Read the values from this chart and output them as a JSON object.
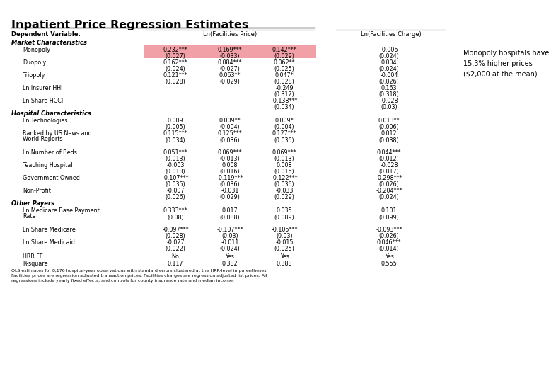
{
  "title": "Inpatient Price Regression Estimates",
  "dep_var_label": "Dependent Variable:",
  "col_headers_price": "Ln(Facilities Price)",
  "col_headers_charge": "Ln(Facilities Charge)",
  "annotation": "Monopoly hospitals have\n15.3% higher prices\n($2,000 at the mean)",
  "section_headers": [
    "Market Characteristics",
    "Hospital Characteristics",
    "Other Payers"
  ],
  "rows": [
    {
      "label": "Monopoly",
      "section": 0,
      "cols": [
        "0.232***",
        "0.169***",
        "0.142***",
        "-0.006"
      ],
      "se": [
        "(0.027)",
        "(0.033)",
        "(0.029)",
        "(0.024)"
      ],
      "highlight": true
    },
    {
      "label": "Duopoly",
      "section": 0,
      "cols": [
        "0.162***",
        "0.084***",
        "0.062**",
        "0.004"
      ],
      "se": [
        "(0.024)",
        "(0.027)",
        "(0.025)",
        "(0.024)"
      ],
      "highlight": false
    },
    {
      "label": "Triopoly",
      "section": 0,
      "cols": [
        "0.121***",
        "0.063**",
        "0.047*",
        "-0.004"
      ],
      "se": [
        "(0.028)",
        "(0.029)",
        "(0.028)",
        "(0.026)"
      ],
      "highlight": false
    },
    {
      "label": "Ln Insurer HHI",
      "section": 0,
      "cols": [
        "",
        "",
        "-0.249",
        "0.163"
      ],
      "se": [
        "",
        "",
        "(0.312)",
        "(0.318)"
      ],
      "highlight": false
    },
    {
      "label": "Ln Share HCCI",
      "section": 0,
      "cols": [
        "",
        "",
        "-0.138***",
        "-0.028"
      ],
      "se": [
        "",
        "",
        "(0.034)",
        "(0.03)"
      ],
      "highlight": false
    },
    {
      "label": "Ln Technologies",
      "section": 1,
      "cols": [
        "0.009",
        "0.009**",
        "0.009*",
        "0.013**"
      ],
      "se": [
        "(0.005)",
        "(0.004)",
        "(0.004)",
        "(0.006)"
      ],
      "highlight": false
    },
    {
      "label": "Ranked by US News and\nWorld Reports",
      "section": 1,
      "cols": [
        "0.115***",
        "0.125***",
        "0.127***",
        "0.012"
      ],
      "se": [
        "(0.034)",
        "(0.036)",
        "(0.036)",
        "(0.038)"
      ],
      "highlight": false
    },
    {
      "label": "Ln Number of Beds",
      "section": 1,
      "cols": [
        "0.051***",
        "0.069***",
        "0.069***",
        "0.044***"
      ],
      "se": [
        "(0.013)",
        "(0.013)",
        "(0.013)",
        "(0.012)"
      ],
      "highlight": false
    },
    {
      "label": "Teaching Hospital",
      "section": 1,
      "cols": [
        "-0.003",
        "0.008",
        "0.008",
        "-0.028"
      ],
      "se": [
        "(0.018)",
        "(0.016)",
        "(0.016)",
        "(0.017)"
      ],
      "highlight": false
    },
    {
      "label": "Government Owned",
      "section": 1,
      "cols": [
        "-0.107***",
        "-0.119***",
        "-0.122***",
        "-0.298***"
      ],
      "se": [
        "(0.035)",
        "(0.036)",
        "(0.036)",
        "(0.026)"
      ],
      "highlight": false
    },
    {
      "label": "Non-Profit",
      "section": 1,
      "cols": [
        "-0.007",
        "-0.031",
        "-0.033",
        "-0.204***"
      ],
      "se": [
        "(0.026)",
        "(0.029)",
        "(0.029)",
        "(0.024)"
      ],
      "highlight": false
    },
    {
      "label": "Ln Medicare Base Payment\nRate",
      "section": 2,
      "cols": [
        "0.333***",
        "0.017",
        "0.035",
        "0.101"
      ],
      "se": [
        "(0.08)",
        "(0.088)",
        "(0.089)",
        "(0.099)"
      ],
      "highlight": false
    },
    {
      "label": "Ln Share Medicare",
      "section": 2,
      "cols": [
        "-0.097***",
        "-0.107***",
        "-0.105***",
        "-0.093***"
      ],
      "se": [
        "(0.028)",
        "(0.03)",
        "(0.03)",
        "(0.026)"
      ],
      "highlight": false
    },
    {
      "label": "Ln Share Medicaid",
      "section": 2,
      "cols": [
        "-0.027",
        "-0.011",
        "-0.015",
        "0.046***"
      ],
      "se": [
        "(0.022)",
        "(0.024)",
        "(0.025)",
        "(0.014)"
      ],
      "highlight": false
    }
  ],
  "footer_rows": [
    {
      "label": "HRR FE",
      "vals": [
        "No",
        "Yes",
        "Yes",
        "Yes"
      ]
    },
    {
      "label": "R-square",
      "vals": [
        "0.117",
        "0.382",
        "0.388",
        "0.555"
      ]
    }
  ],
  "footnote1": "OLS estimates for 8,176 hospital-year observations with standard errors clustered at the HRR-level in parentheses.",
  "footnote2": "Facilities prices are regression adjusted transaction prices. Facilities charges are regression adjusted list prices. All",
  "footnote3": "regressions include yearly fixed effects, and controls for county insurance rate and median income.",
  "highlight_color": "#F2A0A8",
  "bg_color": "#FFFFFF"
}
